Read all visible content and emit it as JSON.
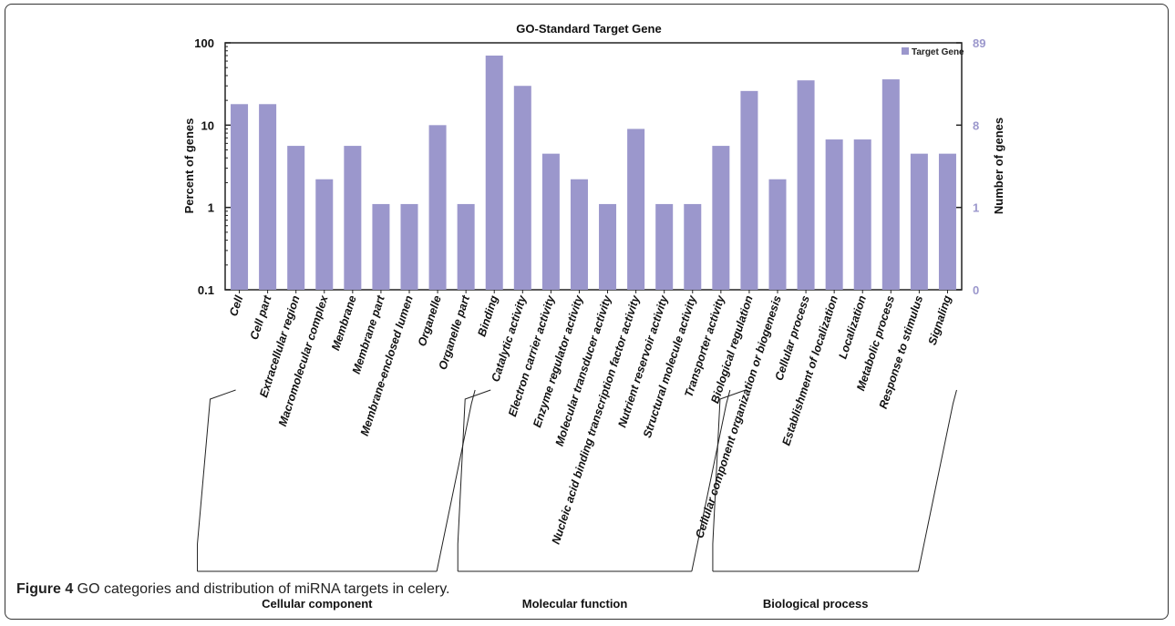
{
  "figure": {
    "caption_label": "Figure 4",
    "caption_text": " GO categories and distribution of miRNA targets in celery."
  },
  "chart_data": {
    "type": "bar",
    "title": "GO-Standard Target Gene",
    "ylabel": "Percent of genes",
    "ylabel_right": "Number of genes",
    "yscale": "log",
    "ylim": [
      0.1,
      100
    ],
    "yticks": [
      "100",
      "10",
      "1",
      "0.1"
    ],
    "yticks_right": [
      "89",
      "8",
      "1",
      "0"
    ],
    "legend": {
      "label": "Target Gene",
      "position": "top-right"
    },
    "bar_color": "#9b97cc",
    "right_axis_color": "#9b97cc",
    "categories": [
      "Cell",
      "Cell part",
      "Extracellular region",
      "Macromolecular complex",
      "Membrane",
      "Membrane part",
      "Membrane-enclosed lumen",
      "Organelle",
      "Organelle part",
      "Binding",
      "Catalytic activity",
      "Electron carrier activity",
      "Enzyme regulator activity",
      "Molecular transducer activity",
      "Nucleic acid binding transcription factor activity",
      "Nutrient reservoir activity",
      "Structural molecule activity",
      "Transporter activity",
      "Biological regulation",
      "Cellular component organization or biogenesis",
      "Cellular process",
      "Establishment of localization",
      "Localization",
      "Metabolic process",
      "Response to stimulus",
      "Signaling"
    ],
    "series": [
      {
        "name": "Target Gene",
        "values": [
          18,
          18,
          5.6,
          2.2,
          5.6,
          1.1,
          1.1,
          10,
          1.1,
          70,
          30,
          4.5,
          2.2,
          1.1,
          9,
          1.1,
          1.1,
          5.6,
          26,
          2.2,
          35,
          6.7,
          6.7,
          36,
          4.5,
          4.5
        ]
      }
    ],
    "groups": [
      {
        "label": "Cellular component",
        "start": 0,
        "end": 8
      },
      {
        "label": "Molecular function",
        "start": 9,
        "end": 17
      },
      {
        "label": "Biological process",
        "start": 18,
        "end": 25
      }
    ]
  }
}
